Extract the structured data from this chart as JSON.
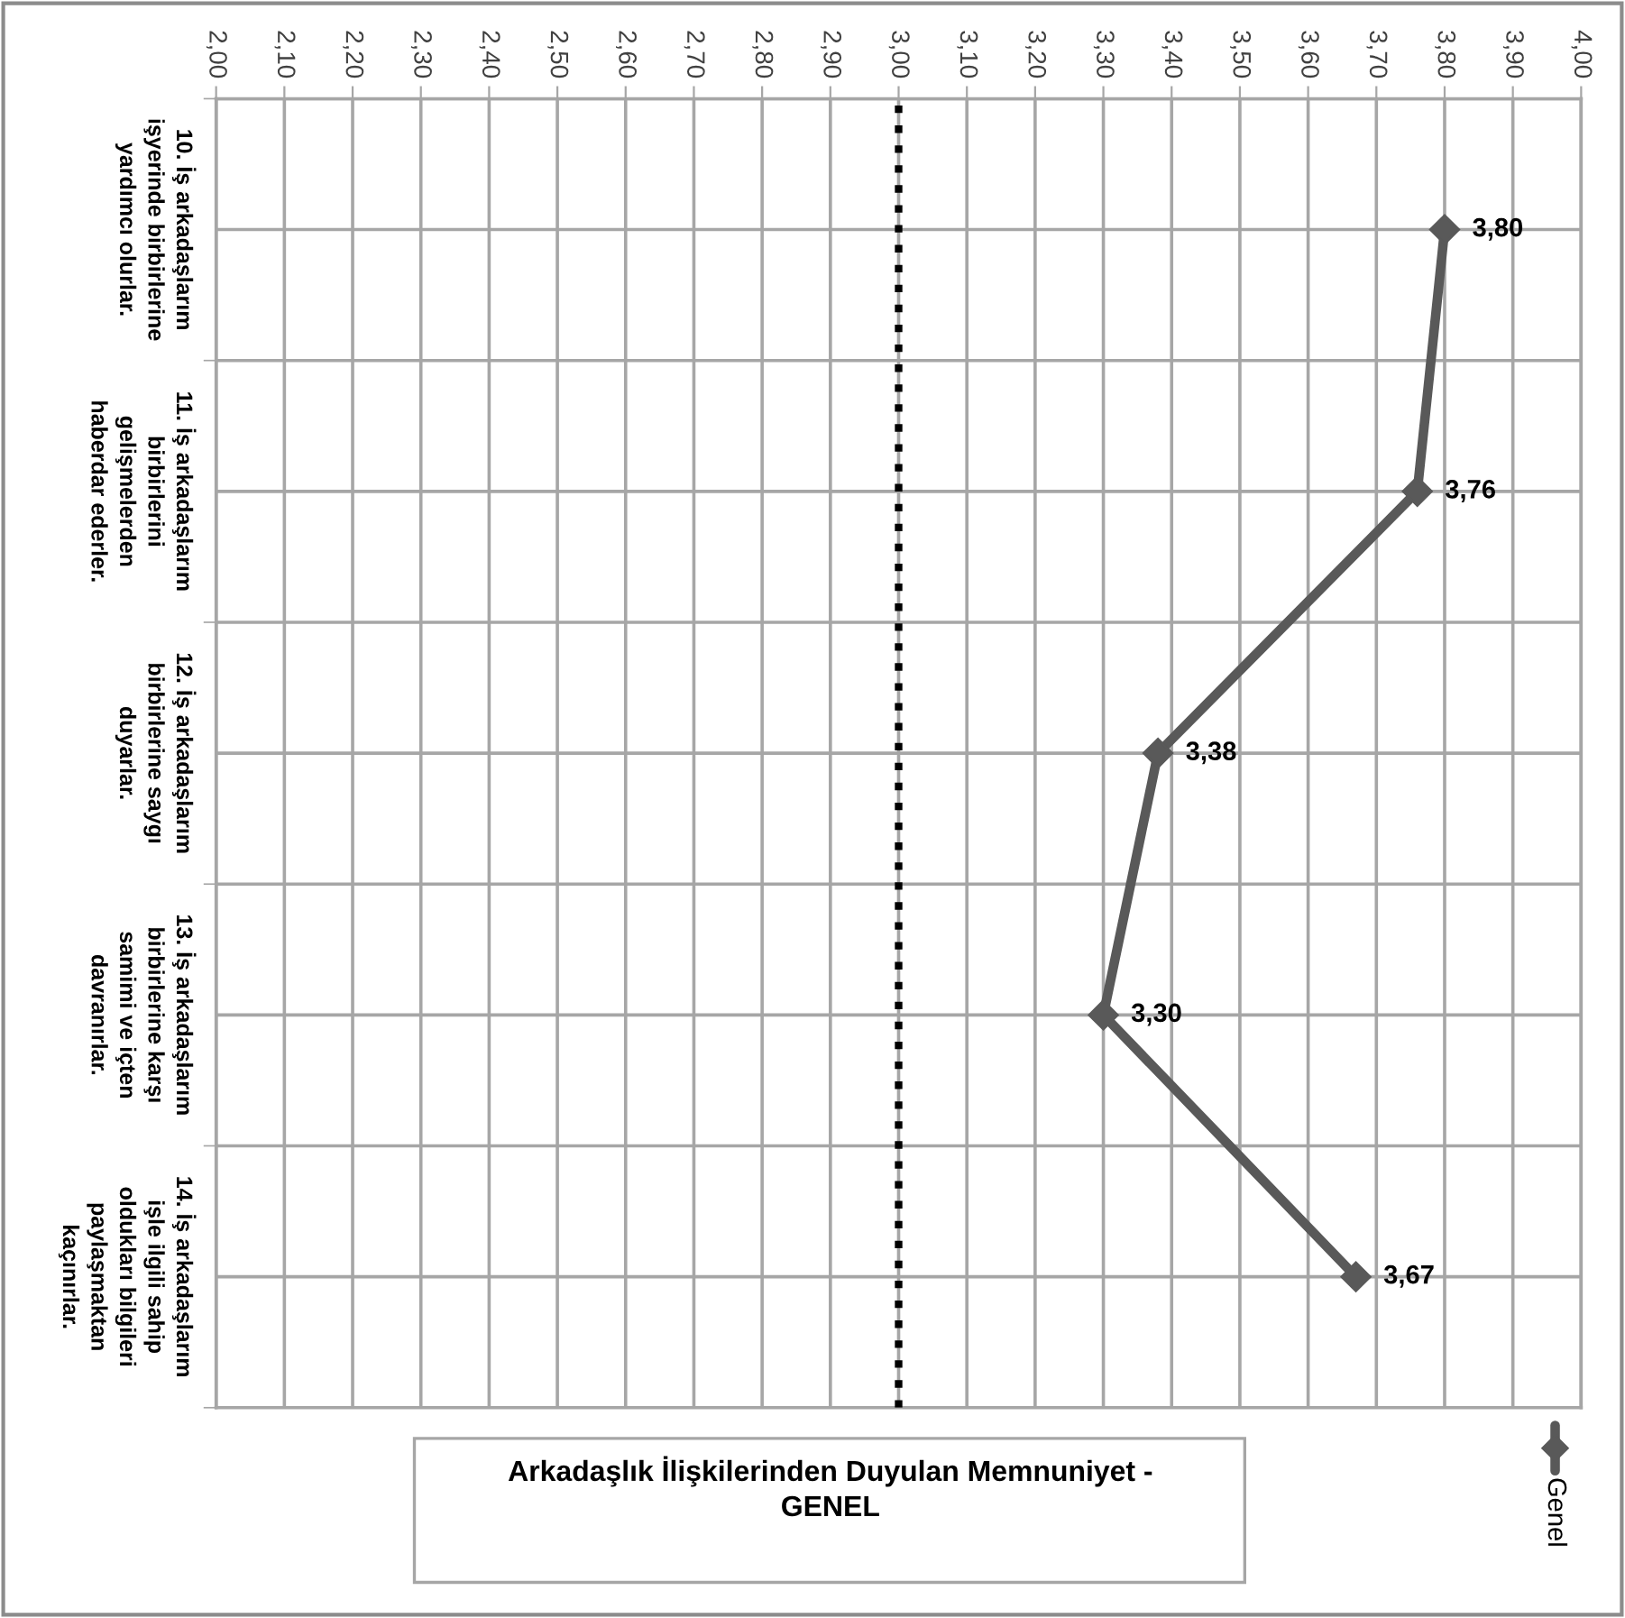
{
  "chart_data": {
    "type": "line",
    "orientation": "horizontal",
    "title": "Arkadaşlık İlişkilerinden Duyulan Memnuniyet -\nGENEL",
    "categories": [
      "10. İş arkadaşlarım\nişyerinde birbirlerine\nyardımcı olurlar.",
      "11. İş arkadaşlarım\nbirbirlerini\ngelişmelerden\nhaberdar ederler.",
      "12. İş arkadaşlarım\nbirbirlerine saygı\nduyarlar.",
      "13. İş arkadaşlarım\nbirbirlerine karşı\nsamimi ve içten\ndavranırlar.",
      "14. İş arkadaşlarım\nişle ilgili sahip\noldukları bilgileri\npaylaşmaktan\nkaçınırlar."
    ],
    "series": [
      {
        "name": "Genel",
        "color": "#595959",
        "values": [
          3.8,
          3.76,
          3.38,
          3.3,
          3.67
        ],
        "value_labels": [
          "3,80",
          "3,76",
          "3,38",
          "3,30",
          "3,67"
        ]
      }
    ],
    "xlim": [
      2.0,
      4.0
    ],
    "xticks": [
      {
        "value": 2.0,
        "label": "2,00"
      },
      {
        "value": 2.1,
        "label": "2,10"
      },
      {
        "value": 2.2,
        "label": "2,20"
      },
      {
        "value": 2.3,
        "label": "2,30"
      },
      {
        "value": 2.4,
        "label": "2,40"
      },
      {
        "value": 2.5,
        "label": "2,50"
      },
      {
        "value": 2.6,
        "label": "2,60"
      },
      {
        "value": 2.7,
        "label": "2,70"
      },
      {
        "value": 2.8,
        "label": "2,80"
      },
      {
        "value": 2.9,
        "label": "2,90"
      },
      {
        "value": 3.0,
        "label": "3,00"
      },
      {
        "value": 3.1,
        "label": "3,10"
      },
      {
        "value": 3.2,
        "label": "3,20"
      },
      {
        "value": 3.3,
        "label": "3,30"
      },
      {
        "value": 3.4,
        "label": "3,40"
      },
      {
        "value": 3.5,
        "label": "3,50"
      },
      {
        "value": 3.6,
        "label": "3,60"
      },
      {
        "value": 3.7,
        "label": "3,70"
      },
      {
        "value": 3.8,
        "label": "3,80"
      },
      {
        "value": 3.9,
        "label": "3,90"
      },
      {
        "value": 4.0,
        "label": "4,00"
      }
    ],
    "ref_lines": [
      {
        "axis": "x",
        "value": 3.0,
        "color": "#000000",
        "line_style": "dotted"
      }
    ],
    "grid": true,
    "legend": "bottom right",
    "marker": "diamond",
    "line_style": "solid"
  }
}
